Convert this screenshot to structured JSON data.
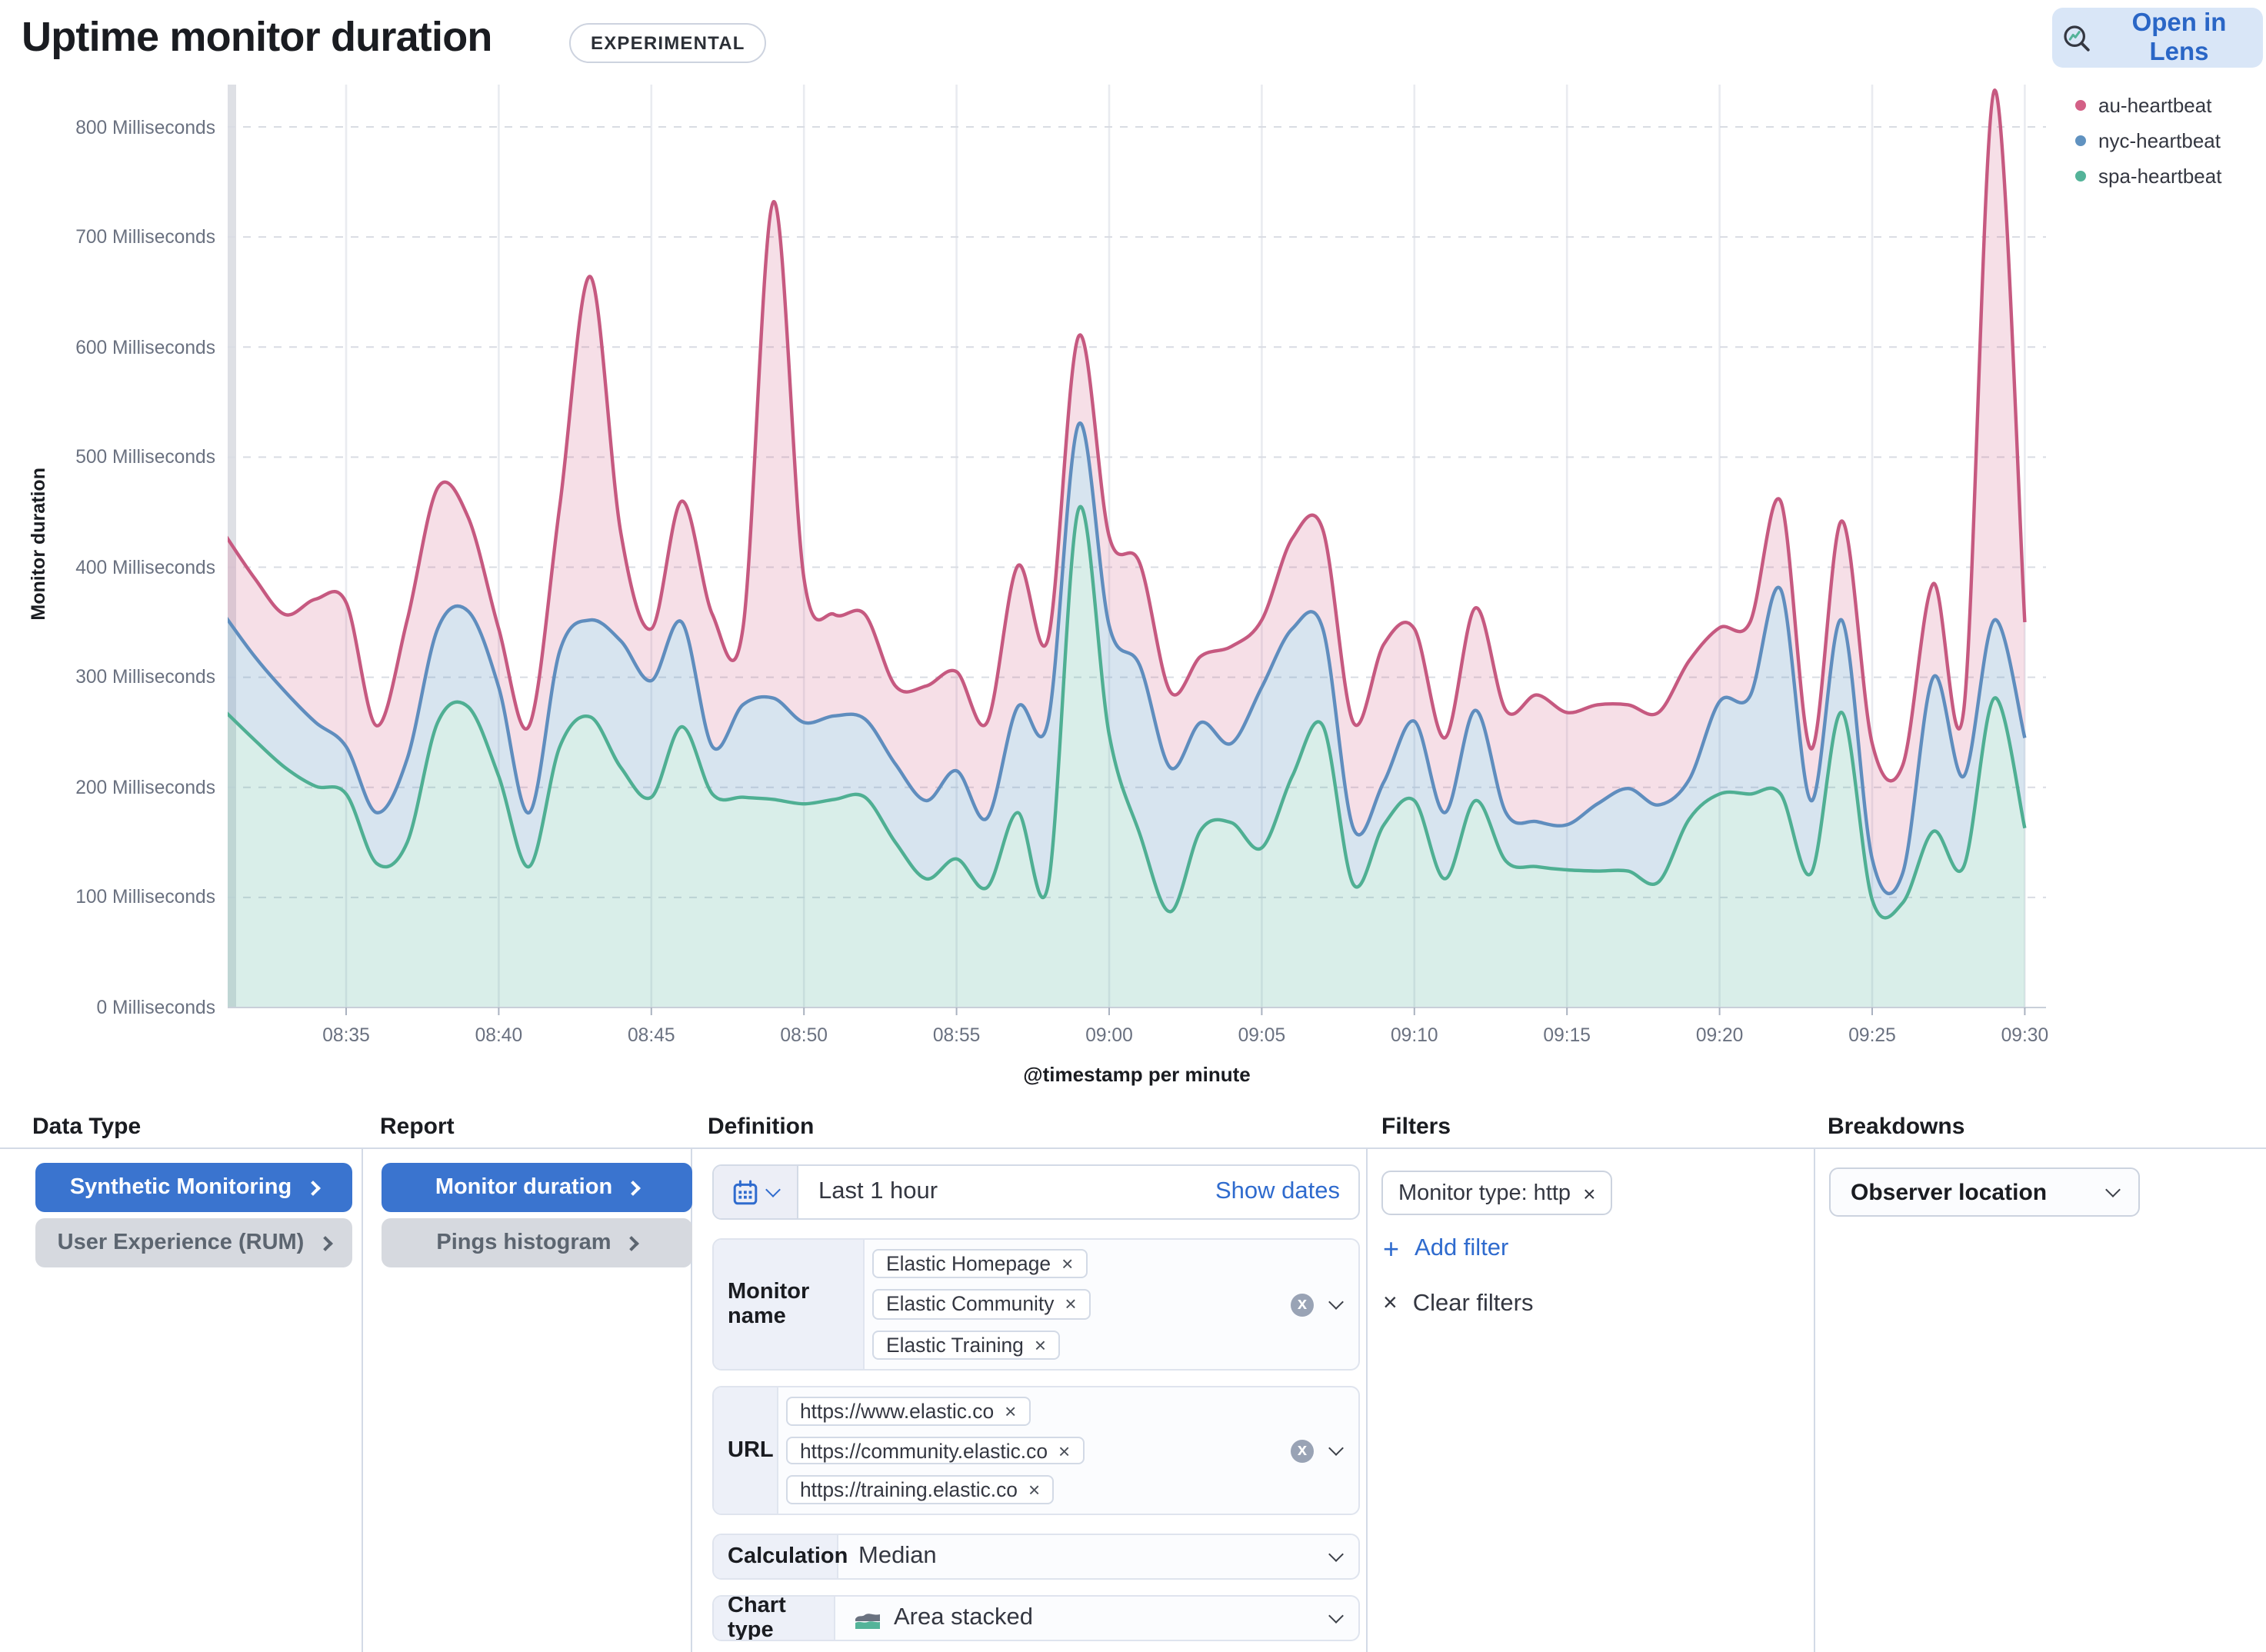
{
  "header": {
    "title": "Uptime monitor duration",
    "badge": "EXPERIMENTAL",
    "open_in_lens": "Open in Lens"
  },
  "icons": {
    "remove": "×",
    "plus": "+",
    "clear": "x"
  },
  "chart_data": {
    "type": "area",
    "stacked": true,
    "title": "",
    "xlabel": "@timestamp per minute",
    "ylabel": "Monitor duration",
    "ylim": [
      0,
      800
    ],
    "grid": true,
    "legend_position": "right",
    "x": [
      "08:31",
      "08:32",
      "08:33",
      "08:34",
      "08:35",
      "08:36",
      "08:37",
      "08:38",
      "08:39",
      "08:40",
      "08:41",
      "08:42",
      "08:43",
      "08:44",
      "08:45",
      "08:46",
      "08:47",
      "08:48",
      "08:49",
      "08:50",
      "08:51",
      "08:52",
      "08:53",
      "08:54",
      "08:55",
      "08:56",
      "08:57",
      "08:58",
      "08:59",
      "09:00",
      "09:01",
      "09:02",
      "09:03",
      "09:04",
      "09:05",
      "09:06",
      "09:07",
      "09:08",
      "09:09",
      "09:10",
      "09:11",
      "09:12",
      "09:13",
      "09:14",
      "09:15",
      "09:16",
      "09:17",
      "09:18",
      "09:19",
      "09:20",
      "09:21",
      "09:22",
      "09:23",
      "09:24",
      "09:25",
      "09:26",
      "09:27",
      "09:28",
      "09:29",
      "09:30"
    ],
    "x_ticks": [
      "08:35",
      "08:40",
      "08:45",
      "08:50",
      "08:55",
      "09:00",
      "09:05",
      "09:10",
      "09:15",
      "09:20",
      "09:25",
      "09:30"
    ],
    "y_ticks": [
      {
        "v": 0,
        "label": "0 Milliseconds"
      },
      {
        "v": 100,
        "label": "100 Milliseconds"
      },
      {
        "v": 200,
        "label": "200 Milliseconds"
      },
      {
        "v": 300,
        "label": "300 Milliseconds"
      },
      {
        "v": 400,
        "label": "400 Milliseconds"
      },
      {
        "v": 500,
        "label": "500 Milliseconds"
      },
      {
        "v": 600,
        "label": "600 Milliseconds"
      },
      {
        "v": 700,
        "label": "700 Milliseconds"
      },
      {
        "v": 800,
        "label": "800 Milliseconds"
      }
    ],
    "series": [
      {
        "name": "au-heartbeat",
        "color": "#d36086",
        "stroke": "#c65980",
        "fill": "rgba(211,96,134,0.20)",
        "values": [
          74,
          71,
          70,
          112,
          131,
          79,
          126,
          128,
          85,
          53,
          79,
          132,
          312,
          98,
          47,
          110,
          120,
          69,
          451,
          131,
          92,
          95,
          71,
          104,
          90,
          87,
          128,
          75,
          80,
          81,
          93,
          69,
          60,
          88,
          61,
          82,
          90,
          96,
          125,
          84,
          68,
          93,
          93,
          115,
          102,
          90,
          76,
          84,
          108,
          67,
          67,
          80,
          47,
          90,
          105,
          98,
          85,
          60,
          481,
          105
        ]
      },
      {
        "name": "nyc-heartbeat",
        "color": "#6092c0",
        "stroke": "#5f8dbe",
        "fill": "rgba(96,146,192,0.25)",
        "values": [
          87,
          76,
          69,
          58,
          43,
          46,
          76,
          85,
          87,
          81,
          49,
          87,
          88,
          115,
          106,
          95,
          43,
          84,
          92,
          74,
          76,
          71,
          71,
          71,
          80,
          63,
          96,
          149,
          77,
          99,
          153,
          131,
          98,
          72,
          146,
          134,
          88,
          51,
          39,
          72,
          60,
          82,
          44,
          41,
          41,
          61,
          75,
          70,
          36,
          84,
          89,
          186,
          66,
          84,
          37,
          27,
          140,
          82,
          71,
          82
        ]
      },
      {
        "name": "spa-heartbeat",
        "color": "#54b399",
        "stroke": "#4faf93",
        "fill": "rgba(84,179,153,0.22)",
        "values": [
          270,
          243,
          218,
          201,
          194,
          131,
          150,
          259,
          273,
          210,
          128,
          237,
          264,
          218,
          191,
          255,
          194,
          191,
          189,
          185,
          189,
          191,
          150,
          117,
          135,
          109,
          177,
          111,
          453,
          248,
          158,
          87,
          161,
          168,
          145,
          210,
          256,
          112,
          166,
          188,
          117,
          188,
          133,
          128,
          125,
          124,
          124,
          114,
          171,
          194,
          194,
          194,
          122,
          268,
          98,
          95,
          160,
          128,
          281,
          163
        ]
      }
    ]
  },
  "panels": {
    "data_type": {
      "header": "Data Type",
      "buttons": [
        {
          "label": "Synthetic Monitoring"
        },
        {
          "label": "User Experience (RUM)"
        }
      ]
    },
    "report": {
      "header": "Report",
      "buttons": [
        {
          "label": "Monitor duration"
        },
        {
          "label": "Pings histogram"
        }
      ]
    },
    "definition": {
      "header": "Definition",
      "date_picker": {
        "value": "Last 1 hour",
        "show_dates": "Show dates"
      },
      "monitor_name": {
        "label": "Monitor name",
        "chips": [
          "Elastic Homepage",
          "Elastic Community",
          "Elastic Training"
        ]
      },
      "url": {
        "label": "URL",
        "chips": [
          "https://www.elastic.co",
          "https://community.elastic.co",
          "https://training.elastic.co"
        ]
      },
      "calculation": {
        "label": "Calculation",
        "value": "Median"
      },
      "chart_type": {
        "label": "Chart type",
        "value": "Area stacked"
      }
    },
    "filters": {
      "header": "Filters",
      "chip": "Monitor type: http",
      "add_filter": "Add filter",
      "clear_filters": "Clear filters"
    },
    "breakdowns": {
      "header": "Breakdowns",
      "selected": "Observer location"
    }
  }
}
